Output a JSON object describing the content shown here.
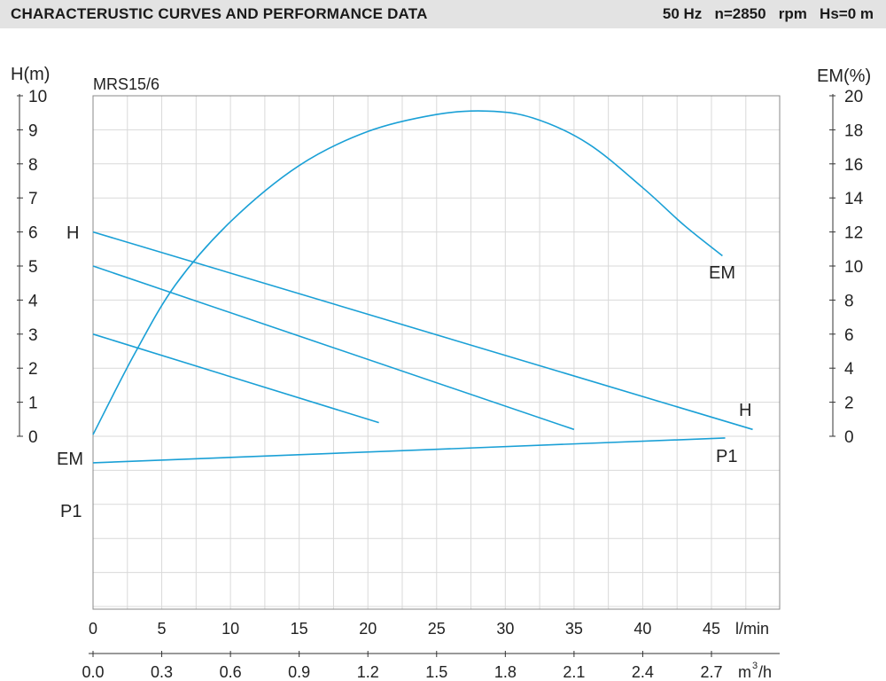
{
  "header": {
    "title": "CHARACTERUSTIC CURVES AND PERFORMANCE DATA",
    "specs": "50 Hz   n=2850   rpm   Hs=0 m"
  },
  "chart_data": {
    "type": "line",
    "model": "MRS15/6",
    "colors": {
      "curve": "#1aa0d6",
      "grid": "#d9d9d9",
      "axis": "#333333",
      "frame": "#888888"
    },
    "grid": true,
    "x_primary": {
      "unit": "l/min",
      "range": [
        0,
        50
      ],
      "ticks": [
        "0",
        "5",
        "10",
        "15",
        "20",
        "25",
        "30",
        "35",
        "40",
        "45"
      ]
    },
    "x_secondary": {
      "unit": "m³/h",
      "unit_base": "m",
      "unit_sup": "3",
      "unit_tail": "/h",
      "ticks": [
        "0.0",
        "0.3",
        "0.6",
        "0.9",
        "1.2",
        "1.5",
        "1.8",
        "2.1",
        "2.4",
        "2.7"
      ]
    },
    "y_left": {
      "label": "H(m)",
      "range": [
        0,
        10
      ],
      "ticks": [
        "0",
        "1",
        "2",
        "3",
        "4",
        "5",
        "6",
        "7",
        "8",
        "9",
        "10"
      ]
    },
    "y_right": {
      "label": "EM(%)",
      "range": [
        0,
        20
      ],
      "ticks": [
        "0",
        "2",
        "4",
        "6",
        "8",
        "10",
        "12",
        "14",
        "16",
        "18",
        "20"
      ]
    },
    "curve_labels": {
      "h_left": "H",
      "h_right": "H",
      "em_right": "EM",
      "em_left": "EM",
      "p1_right": "P1",
      "p1_left": "P1"
    },
    "series": [
      {
        "name": "H",
        "axis": "H",
        "x": [
          0,
          48
        ],
        "y": [
          6.0,
          0.2
        ]
      },
      {
        "name": "H",
        "axis": "H",
        "x": [
          0,
          35
        ],
        "y": [
          5.0,
          0.2
        ]
      },
      {
        "name": "H",
        "axis": "H",
        "x": [
          0,
          20.8
        ],
        "y": [
          3.0,
          0.4
        ]
      },
      {
        "name": "EM",
        "axis": "EM",
        "x": [
          0,
          3,
          6,
          10,
          15,
          20,
          25,
          28.7,
          32,
          36,
          40,
          43,
          45.8
        ],
        "y": [
          0.1,
          4.8,
          8.9,
          12.6,
          15.9,
          17.9,
          18.9,
          19.1,
          18.7,
          17.2,
          14.6,
          12.4,
          10.6
        ]
      },
      {
        "name": "P1",
        "axis": "P1",
        "x": [
          0,
          46
        ],
        "y": [
          -0.78,
          -0.05
        ]
      }
    ]
  }
}
